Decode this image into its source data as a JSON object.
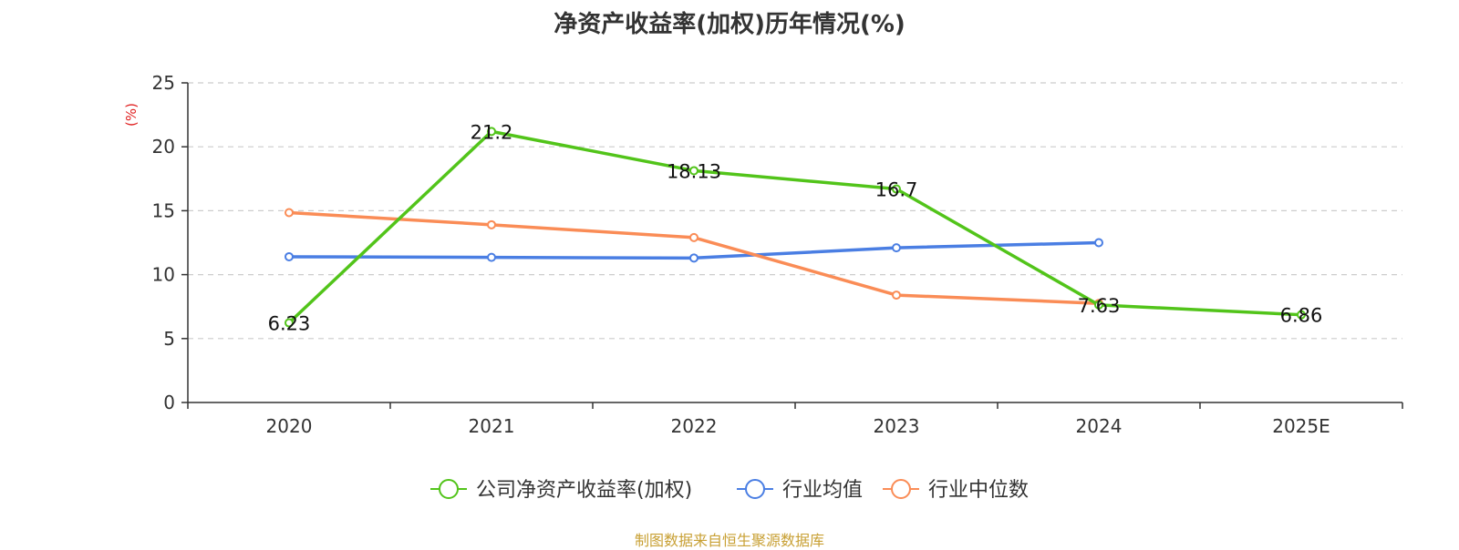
{
  "chart_data": {
    "type": "line",
    "title": "净资产收益率(加权)历年情况(%)",
    "ylabel": "(%)",
    "xlabel": "",
    "ylim": [
      0,
      25
    ],
    "yticks": [
      0,
      5,
      10,
      15,
      20,
      25
    ],
    "grid": true,
    "legend_position": "bottom",
    "categories": [
      "2020",
      "2021",
      "2022",
      "2023",
      "2024",
      "2025E"
    ],
    "series": [
      {
        "name": "公司净资产收益率(加权)",
        "color": "#52c41a",
        "values": [
          6.23,
          21.2,
          18.13,
          16.7,
          7.63,
          6.86
        ],
        "labels": [
          "6.23",
          "21.2",
          "18.13",
          "16.7",
          "7.63",
          "6.86"
        ]
      },
      {
        "name": "行业均值",
        "color": "#4a7ee3",
        "values": [
          11.4,
          11.35,
          11.3,
          12.1,
          12.5,
          null
        ]
      },
      {
        "name": "行业中位数",
        "color": "#fa8c56",
        "values": [
          14.85,
          13.9,
          12.9,
          8.4,
          7.75,
          null
        ]
      }
    ]
  },
  "source": "制图数据来自恒生聚源数据库"
}
